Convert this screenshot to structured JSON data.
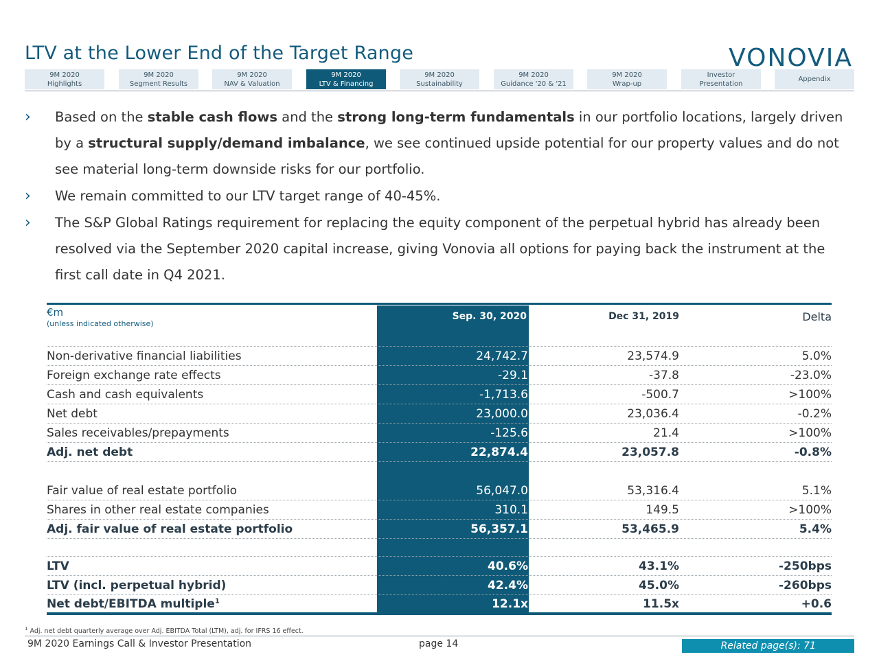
{
  "header": {
    "title": "LTV at the Lower End of the Target Range",
    "logo": "VONOVIA"
  },
  "nav": {
    "tabs": [
      {
        "line1": "9M 2020",
        "line2": "Highlights"
      },
      {
        "line1": "9M 2020",
        "line2": "Segment Results"
      },
      {
        "line1": "9M 2020",
        "line2": "NAV & Valuation"
      },
      {
        "line1": "9M 2020",
        "line2": "LTV & Financing"
      },
      {
        "line1": "9M 2020",
        "line2": "Sustainability"
      },
      {
        "line1": "9M 2020",
        "line2": "Guidance '20 & '21"
      },
      {
        "line1": "9M 2020",
        "line2": "Wrap-up"
      },
      {
        "line1": "Investor",
        "line2": "Presentation"
      },
      {
        "line1": "Appendix",
        "line2": ""
      }
    ],
    "active_index": 3
  },
  "bullets": {
    "b1": {
      "t1": "Based on the ",
      "b1": "stable cash flows",
      "t2": " and the ",
      "b2": "strong long-term fundamentals",
      "t3": " in our portfolio locations, largely driven by a ",
      "b3": "structural supply/demand imbalance",
      "t4": ", we see continued upside potential for our property values and do not see material long-term downside risks for our portfolio."
    },
    "b2": "We remain committed to our LTV target range of 40-45%.",
    "b3": "The S&P Global Ratings requirement for replacing the equity component of the perpetual hybrid has already been resolved via the September 2020 capital increase, giving Vonovia all options for paying back the instrument at the first call date in Q4 2021."
  },
  "table": {
    "unit": "€m",
    "unit_note": "(unless indicated otherwise)",
    "columns": [
      "Sep. 30, 2020",
      "Dec 31, 2019",
      "Delta"
    ],
    "rows": [
      {
        "label": "Non-derivative financial liabilities",
        "c1": "24,742.7",
        "c2": "23,574.9",
        "c3": "5.0%"
      },
      {
        "label": "Foreign exchange rate effects",
        "c1": "-29.1",
        "c2": "-37.8",
        "c3": "-23.0%"
      },
      {
        "label": "Cash and cash equivalents",
        "c1": "-1,713.6",
        "c2": "-500.7",
        "c3": ">100%"
      },
      {
        "label": "Net debt",
        "c1": "23,000.0",
        "c2": "23,036.4",
        "c3": "-0.2%"
      },
      {
        "label": "Sales receivables/prepayments",
        "c1": "-125.6",
        "c2": "21.4",
        "c3": ">100%"
      },
      {
        "label": "Adj. net debt",
        "c1": "22,874.4",
        "c2": "23,057.8",
        "c3": "-0.8%"
      },
      {
        "label": "Fair value of real estate portfolio",
        "c1": "56,047.0",
        "c2": "53,316.4",
        "c3": "5.1%"
      },
      {
        "label": "Shares in other real estate companies",
        "c1": "310.1",
        "c2": "149.5",
        "c3": ">100%"
      },
      {
        "label": "Adj. fair value of real estate portfolio",
        "c1": "56,357.1",
        "c2": "53,465.9",
        "c3": "5.4%"
      },
      {
        "label": "LTV",
        "c1": "40.6%",
        "c2": "43.1%",
        "c3": "-250bps"
      },
      {
        "label": "LTV (incl. perpetual hybrid)",
        "c1": "42.4%",
        "c2": "45.0%",
        "c3": "-260bps"
      },
      {
        "label": "Net debt/EBITDA multiple",
        "sup": "1",
        "c1": "12.1x",
        "c2": "11.5x",
        "c3": "+0.6"
      }
    ]
  },
  "footnote": {
    "mark": "1",
    "text": " Adj. net debt quarterly average over Adj. EBITDA Total (LTM), adj. for IFRS 16 effect."
  },
  "footer": {
    "left": "9M 2020 Earnings Call & Investor Presentation",
    "page": "page 14",
    "related": "Related page(s): 71"
  },
  "colors": {
    "brand": "#135b7d",
    "highlight_column": "#0f5a78",
    "related_badge": "#0f8fb0"
  }
}
